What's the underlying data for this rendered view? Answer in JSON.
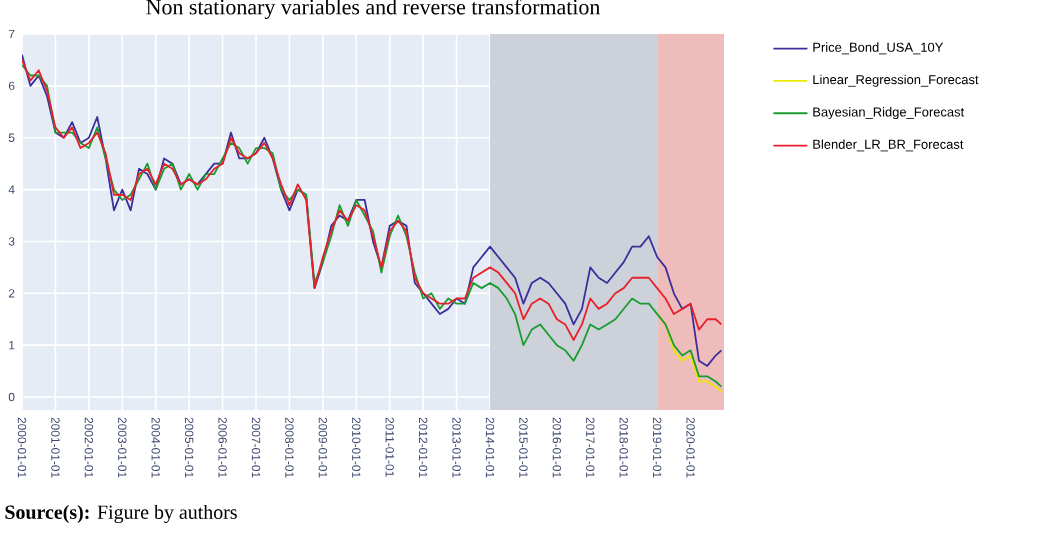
{
  "chart_data": {
    "type": "line",
    "title": "Non stationary variables and reverse transformation",
    "annotations": [
      "**Source(s):** Figure by authors"
    ],
    "x": [
      "2000-01",
      "2000-04",
      "2000-07",
      "2000-10",
      "2001-01",
      "2001-04",
      "2001-07",
      "2001-10",
      "2002-01",
      "2002-04",
      "2002-07",
      "2002-10",
      "2003-01",
      "2003-04",
      "2003-07",
      "2003-10",
      "2004-01",
      "2004-04",
      "2004-07",
      "2004-10",
      "2005-01",
      "2005-04",
      "2005-07",
      "2005-10",
      "2006-01",
      "2006-04",
      "2006-07",
      "2006-10",
      "2007-01",
      "2007-04",
      "2007-07",
      "2007-10",
      "2008-01",
      "2008-04",
      "2008-07",
      "2008-10",
      "2009-01",
      "2009-04",
      "2009-07",
      "2009-10",
      "2010-01",
      "2010-04",
      "2010-07",
      "2010-10",
      "2011-01",
      "2011-04",
      "2011-07",
      "2011-10",
      "2012-01",
      "2012-04",
      "2012-07",
      "2012-10",
      "2013-01",
      "2013-04",
      "2013-07",
      "2013-10",
      "2014-01",
      "2014-04",
      "2014-07",
      "2014-10",
      "2015-01",
      "2015-04",
      "2015-07",
      "2015-10",
      "2016-01",
      "2016-04",
      "2016-07",
      "2016-10",
      "2017-01",
      "2017-04",
      "2017-07",
      "2017-10",
      "2018-01",
      "2018-04",
      "2018-07",
      "2018-10",
      "2019-01",
      "2019-04",
      "2019-07",
      "2019-10",
      "2020-01",
      "2020-04",
      "2020-07",
      "2020-10",
      "2020-12"
    ],
    "series": [
      {
        "name": "Price_Bond_USA_10Y",
        "color": "#3b2d9c",
        "values": [
          6.6,
          6.0,
          6.2,
          5.8,
          5.1,
          5.0,
          5.3,
          4.9,
          5.0,
          5.4,
          4.6,
          3.6,
          4.0,
          3.6,
          4.4,
          4.3,
          4.0,
          4.6,
          4.5,
          4.1,
          4.2,
          4.1,
          4.3,
          4.5,
          4.5,
          5.1,
          4.6,
          4.6,
          4.7,
          5.0,
          4.6,
          4.0,
          3.6,
          4.0,
          3.9,
          2.1,
          2.6,
          3.3,
          3.5,
          3.4,
          3.8,
          3.8,
          3.0,
          2.5,
          3.3,
          3.4,
          3.3,
          2.2,
          2.0,
          1.8,
          1.6,
          1.7,
          1.9,
          1.8,
          2.5,
          2.7,
          2.9,
          2.7,
          2.5,
          2.3,
          1.8,
          2.2,
          2.3,
          2.2,
          2.0,
          1.8,
          1.4,
          1.7,
          2.5,
          2.3,
          2.2,
          2.4,
          2.6,
          2.9,
          2.9,
          3.1,
          2.7,
          2.5,
          2.0,
          1.7,
          1.8,
          0.7,
          0.6,
          0.8,
          0.9
        ]
      },
      {
        "name": "Linear_Regression_Forecast",
        "color": "#e8e800",
        "values": [
          null,
          null,
          null,
          null,
          null,
          null,
          null,
          null,
          null,
          null,
          null,
          null,
          null,
          null,
          null,
          null,
          null,
          null,
          null,
          null,
          null,
          null,
          null,
          null,
          null,
          null,
          null,
          null,
          null,
          null,
          null,
          null,
          null,
          null,
          null,
          null,
          null,
          null,
          null,
          null,
          null,
          null,
          null,
          null,
          null,
          null,
          null,
          null,
          null,
          null,
          null,
          null,
          null,
          null,
          null,
          null,
          null,
          null,
          null,
          null,
          null,
          null,
          null,
          null,
          null,
          null,
          null,
          null,
          null,
          null,
          null,
          null,
          null,
          null,
          null,
          null,
          1.6,
          1.4,
          0.9,
          0.7,
          0.8,
          0.3,
          0.3,
          0.2,
          0.1
        ]
      },
      {
        "name": "Bayesian_Ridge_Forecast",
        "color": "#1a9c30",
        "values": [
          6.4,
          6.2,
          6.2,
          6.0,
          5.1,
          5.1,
          5.1,
          4.9,
          4.8,
          5.2,
          4.6,
          4.0,
          3.8,
          3.9,
          4.2,
          4.5,
          4.0,
          4.4,
          4.5,
          4.0,
          4.3,
          4.0,
          4.3,
          4.3,
          4.6,
          4.9,
          4.8,
          4.5,
          4.8,
          4.8,
          4.7,
          4.0,
          3.8,
          4.0,
          3.9,
          2.2,
          2.6,
          3.1,
          3.7,
          3.3,
          3.8,
          3.5,
          3.2,
          2.4,
          3.1,
          3.5,
          3.1,
          2.4,
          1.9,
          2.0,
          1.7,
          1.9,
          1.8,
          1.8,
          2.2,
          2.1,
          2.2,
          2.1,
          1.9,
          1.6,
          1.0,
          1.3,
          1.4,
          1.2,
          1.0,
          0.9,
          0.7,
          1.0,
          1.4,
          1.3,
          1.4,
          1.5,
          1.7,
          1.9,
          1.8,
          1.8,
          1.6,
          1.4,
          1.0,
          0.8,
          0.9,
          0.4,
          0.4,
          0.3,
          0.2
        ]
      },
      {
        "name": "Blender_LR_BR_Forecast",
        "color": "#e8202a",
        "values": [
          6.5,
          6.1,
          6.3,
          5.9,
          5.2,
          5.0,
          5.2,
          4.8,
          4.9,
          5.1,
          4.7,
          3.9,
          3.9,
          3.8,
          4.3,
          4.4,
          4.1,
          4.5,
          4.4,
          4.1,
          4.2,
          4.1,
          4.2,
          4.4,
          4.5,
          5.0,
          4.7,
          4.6,
          4.7,
          4.9,
          4.6,
          4.1,
          3.7,
          4.1,
          3.8,
          2.1,
          2.7,
          3.2,
          3.6,
          3.4,
          3.7,
          3.6,
          3.1,
          2.5,
          3.2,
          3.4,
          3.2,
          2.3,
          2.0,
          1.9,
          1.8,
          1.8,
          1.9,
          1.9,
          2.3,
          2.4,
          2.5,
          2.4,
          2.2,
          2.0,
          1.5,
          1.8,
          1.9,
          1.8,
          1.5,
          1.4,
          1.1,
          1.4,
          1.9,
          1.7,
          1.8,
          2.0,
          2.1,
          2.3,
          2.3,
          2.3,
          2.1,
          1.9,
          1.6,
          1.7,
          1.8,
          1.3,
          1.5,
          1.5,
          1.4
        ]
      }
    ],
    "xlim": [
      "2000-01-01",
      "2020-12-31"
    ],
    "ylim": [
      -0.25,
      7.0
    ],
    "xticks": [
      "2000-01-01",
      "2001-01-01",
      "2002-01-01",
      "2003-01-01",
      "2004-01-01",
      "2005-01-01",
      "2006-01-01",
      "2007-01-01",
      "2008-01-01",
      "2009-01-01",
      "2010-01-01",
      "2011-01-01",
      "2012-01-01",
      "2013-01-01",
      "2014-01-01",
      "2015-01-01",
      "2016-01-01",
      "2017-01-01",
      "2018-01-01",
      "2019-01-01",
      "2020-01-01"
    ],
    "yticks": [
      0,
      1,
      2,
      3,
      4,
      5,
      6,
      7
    ],
    "bands": [
      {
        "axis": "x",
        "from": "2014-01-01",
        "to": "2019-01-01",
        "color": "#cdd2da"
      },
      {
        "axis": "x",
        "from": "2019-01-01",
        "to": "2020-12-31",
        "color": "#efbcbc"
      }
    ],
    "grid": true,
    "legend": "top right",
    "line_style": "solid"
  }
}
